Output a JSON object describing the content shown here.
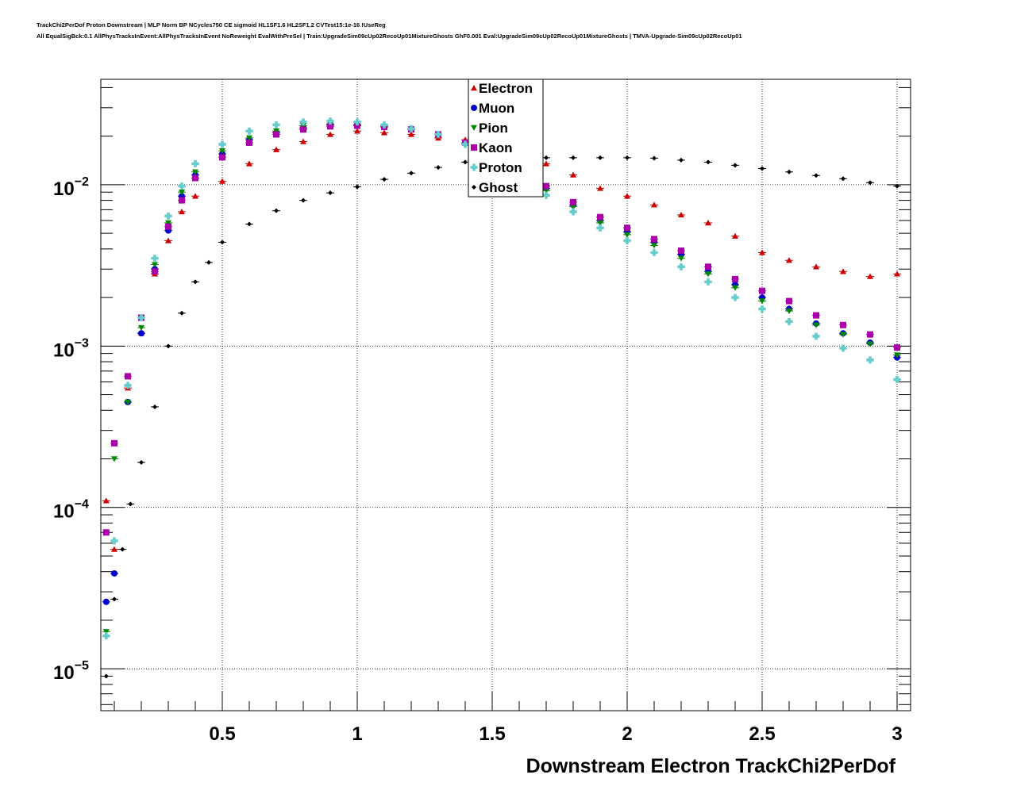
{
  "header": {
    "line1": "TrackChi2PerDof Proton Downstream | MLP Norm BP NCycles750 CE sigmoid HL1SF1.6 HL2SF1.2 CVTest15:1e-16 !UseReg",
    "line2": "All EqualSigBck:0.1 AllPhysTracksInEvent:AllPhysTracksInEvent NoReweight EvalWithPreSel | Train:UpgradeSim09cUp02RecoUp01MixtureGhosts GhF0.001 Eval:UpgradeSim09cUp02RecoUp01MixtureGhosts | TMVA-Upgrade-Sim09cUp02RecoUp01"
  },
  "chart_data": {
    "type": "scatter",
    "title": "",
    "xlabel": "Downstream Electron TrackChi2PerDof",
    "ylabel": "",
    "xlim": [
      0.05,
      3.05
    ],
    "ylim": [
      5.5e-06,
      0.045
    ],
    "yscale": "log",
    "grid": true,
    "legend_position": "top-center",
    "x_ticks": [
      "0.5",
      "1",
      "1.5",
      "2",
      "2.5",
      "3"
    ],
    "y_ticks": [
      {
        "mantissa": "10",
        "exp": "−5"
      },
      {
        "mantissa": "10",
        "exp": "−4"
      },
      {
        "mantissa": "10",
        "exp": "−3"
      },
      {
        "mantissa": "10",
        "exp": "−2"
      }
    ],
    "series": [
      {
        "name": "Electron",
        "color": "#cc0000",
        "marker": "triangle-up",
        "x": [
          0.07,
          0.1,
          0.15,
          0.2,
          0.25,
          0.3,
          0.35,
          0.4,
          0.5,
          0.6,
          0.7,
          0.8,
          0.9,
          1.0,
          1.1,
          1.2,
          1.3,
          1.4,
          1.5,
          1.6,
          1.7,
          1.8,
          1.9,
          2.0,
          2.1,
          2.2,
          2.3,
          2.4,
          2.5,
          2.6,
          2.7,
          2.8,
          2.9,
          3.0
        ],
        "y": [
          0.00011,
          5.5e-05,
          0.00055,
          0.0012,
          0.0028,
          0.0045,
          0.0068,
          0.0085,
          0.0105,
          0.0135,
          0.0165,
          0.0185,
          0.0205,
          0.0215,
          0.021,
          0.0205,
          0.0195,
          0.019,
          0.0165,
          0.0145,
          0.0135,
          0.0115,
          0.0095,
          0.0085,
          0.0075,
          0.0065,
          0.0058,
          0.0048,
          0.0038,
          0.0034,
          0.0031,
          0.0029,
          0.0027,
          0.0028
        ]
      },
      {
        "name": "Muon",
        "color": "#0000cc",
        "marker": "circle",
        "x": [
          0.07,
          0.1,
          0.15,
          0.2,
          0.25,
          0.3,
          0.35,
          0.4,
          0.5,
          0.6,
          0.7,
          0.8,
          0.9,
          1.0,
          1.1,
          1.2,
          1.3,
          1.4,
          1.5,
          1.6,
          1.7,
          1.8,
          1.9,
          2.0,
          2.1,
          2.2,
          2.3,
          2.4,
          2.5,
          2.6,
          2.7,
          2.8,
          2.9,
          3.0
        ],
        "y": [
          2.6e-05,
          3.9e-05,
          0.00045,
          0.0012,
          0.003,
          0.0052,
          0.0085,
          0.0115,
          0.0155,
          0.019,
          0.021,
          0.0225,
          0.0235,
          0.0235,
          0.023,
          0.0222,
          0.0205,
          0.018,
          0.0152,
          0.0125,
          0.0095,
          0.0075,
          0.006,
          0.0051,
          0.0044,
          0.0037,
          0.0029,
          0.0024,
          0.002,
          0.0017,
          0.00138,
          0.0012,
          0.00105,
          0.00085
        ]
      },
      {
        "name": "Pion",
        "color": "#008800",
        "marker": "triangle-down",
        "x": [
          0.07,
          0.1,
          0.15,
          0.2,
          0.25,
          0.3,
          0.35,
          0.4,
          0.5,
          0.6,
          0.7,
          0.8,
          0.9,
          1.0,
          1.1,
          1.2,
          1.3,
          1.4,
          1.5,
          1.6,
          1.7,
          1.8,
          1.9,
          2.0,
          2.1,
          2.2,
          2.3,
          2.4,
          2.5,
          2.6,
          2.7,
          2.8,
          2.9,
          3.0
        ],
        "y": [
          1.7e-05,
          0.0002,
          0.00045,
          0.0013,
          0.0032,
          0.0058,
          0.009,
          0.012,
          0.0162,
          0.0195,
          0.0215,
          0.0232,
          0.0238,
          0.0236,
          0.023,
          0.022,
          0.0205,
          0.018,
          0.015,
          0.0122,
          0.0092,
          0.0073,
          0.0058,
          0.0049,
          0.0042,
          0.0035,
          0.0028,
          0.0023,
          0.0019,
          0.00165,
          0.00135,
          0.00118,
          0.00103,
          0.00088
        ]
      },
      {
        "name": "Kaon",
        "color": "#aa00aa",
        "marker": "square",
        "x": [
          0.07,
          0.1,
          0.15,
          0.2,
          0.25,
          0.3,
          0.35,
          0.4,
          0.5,
          0.6,
          0.7,
          0.8,
          0.9,
          1.0,
          1.1,
          1.2,
          1.3,
          1.4,
          1.5,
          1.6,
          1.7,
          1.8,
          1.9,
          2.0,
          2.1,
          2.2,
          2.3,
          2.4,
          2.5,
          2.6,
          2.7,
          2.8,
          2.9,
          3.0
        ],
        "y": [
          7e-05,
          0.00025,
          0.00065,
          0.0015,
          0.0029,
          0.0055,
          0.008,
          0.011,
          0.0148,
          0.0182,
          0.0205,
          0.022,
          0.023,
          0.0232,
          0.0228,
          0.022,
          0.0205,
          0.0182,
          0.0155,
          0.0128,
          0.0098,
          0.0078,
          0.0063,
          0.0054,
          0.0046,
          0.0039,
          0.0031,
          0.0026,
          0.0022,
          0.0019,
          0.00155,
          0.00135,
          0.00118,
          0.00098
        ]
      },
      {
        "name": "Proton",
        "color": "#66cccc",
        "marker": "cross",
        "x": [
          0.07,
          0.1,
          0.15,
          0.2,
          0.25,
          0.3,
          0.35,
          0.4,
          0.5,
          0.6,
          0.7,
          0.8,
          0.9,
          1.0,
          1.1,
          1.2,
          1.3,
          1.4,
          1.5,
          1.6,
          1.7,
          1.8,
          1.9,
          2.0,
          2.1,
          2.2,
          2.3,
          2.4,
          2.5,
          2.6,
          2.7,
          2.8,
          2.9,
          3.0
        ],
        "y": [
          1.6e-05,
          6.2e-05,
          0.00057,
          0.0015,
          0.0035,
          0.0064,
          0.0098,
          0.0135,
          0.0178,
          0.0215,
          0.0235,
          0.0245,
          0.0248,
          0.0245,
          0.0235,
          0.0222,
          0.0205,
          0.0178,
          0.0146,
          0.0118,
          0.0086,
          0.0068,
          0.0054,
          0.0045,
          0.0038,
          0.0031,
          0.0025,
          0.002,
          0.0017,
          0.00142,
          0.00115,
          0.00097,
          0.00082,
          0.00062
        ]
      },
      {
        "name": "Ghost",
        "color": "#000000",
        "marker": "diamond",
        "x": [
          0.07,
          0.1,
          0.13,
          0.16,
          0.2,
          0.25,
          0.3,
          0.35,
          0.4,
          0.45,
          0.5,
          0.6,
          0.7,
          0.8,
          0.9,
          1.0,
          1.1,
          1.2,
          1.3,
          1.4,
          1.5,
          1.6,
          1.7,
          1.8,
          1.9,
          2.0,
          2.1,
          2.2,
          2.3,
          2.4,
          2.5,
          2.6,
          2.7,
          2.8,
          2.9,
          3.0
        ],
        "y": [
          9e-06,
          2.7e-05,
          5.5e-05,
          0.000105,
          0.00019,
          0.00042,
          0.001,
          0.0016,
          0.0025,
          0.0033,
          0.0044,
          0.0057,
          0.0069,
          0.008,
          0.0089,
          0.0097,
          0.0108,
          0.0118,
          0.0128,
          0.0138,
          0.0145,
          0.0147,
          0.0147,
          0.0147,
          0.0147,
          0.0147,
          0.0146,
          0.0142,
          0.0138,
          0.0132,
          0.0126,
          0.012,
          0.0114,
          0.0109,
          0.0103,
          0.0098
        ]
      }
    ]
  }
}
